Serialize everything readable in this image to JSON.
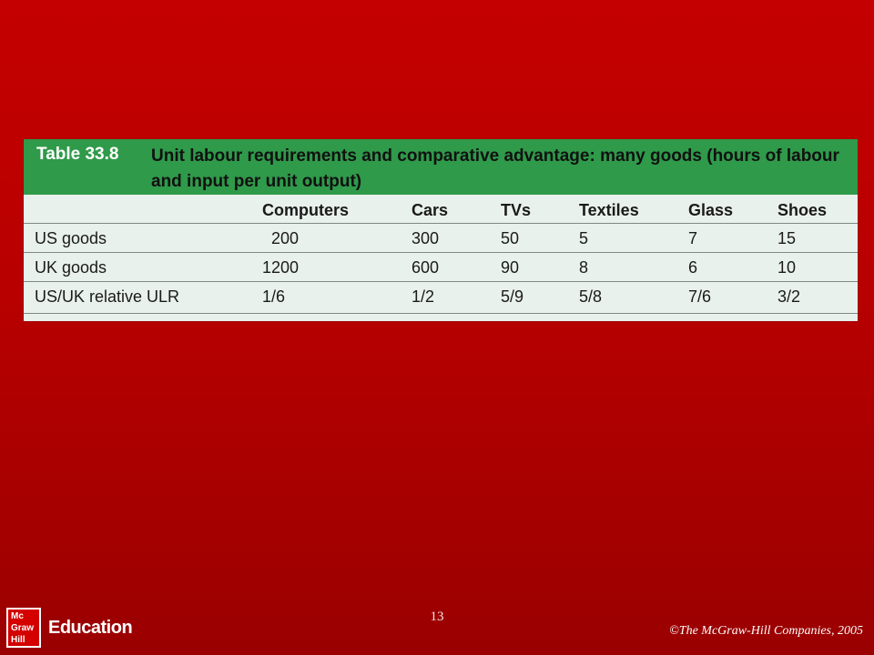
{
  "table": {
    "number": "Table 33.8",
    "title_line1": "Unit labour requirements and comparative advantage: many goods (hours of labour",
    "title_line2": "and input per unit output)",
    "columns": [
      "",
      "Computers",
      "Cars",
      "TVs",
      "Textiles",
      "Glass",
      "Shoes"
    ],
    "rows": [
      {
        "label": "US goods",
        "values": [
          "200",
          "300",
          "50",
          "5",
          "7",
          "15"
        ]
      },
      {
        "label": "UK goods",
        "values": [
          "1200",
          "600",
          "90",
          "8",
          "6",
          "10"
        ]
      },
      {
        "label": "US/UK relative ULR",
        "values": [
          "1/6",
          "1/2",
          "5/9",
          "5/8",
          "7/6",
          "3/2"
        ]
      }
    ]
  },
  "footer": {
    "logo_text": "Mc Graw Hill",
    "logo_word": "Education",
    "page_number": "13",
    "copyright": "©The McGraw-Hill Companies, 2005"
  },
  "colors": {
    "background": "#c40000",
    "table_header": "#2f9a4a",
    "table_body": "#e9f1ec"
  }
}
